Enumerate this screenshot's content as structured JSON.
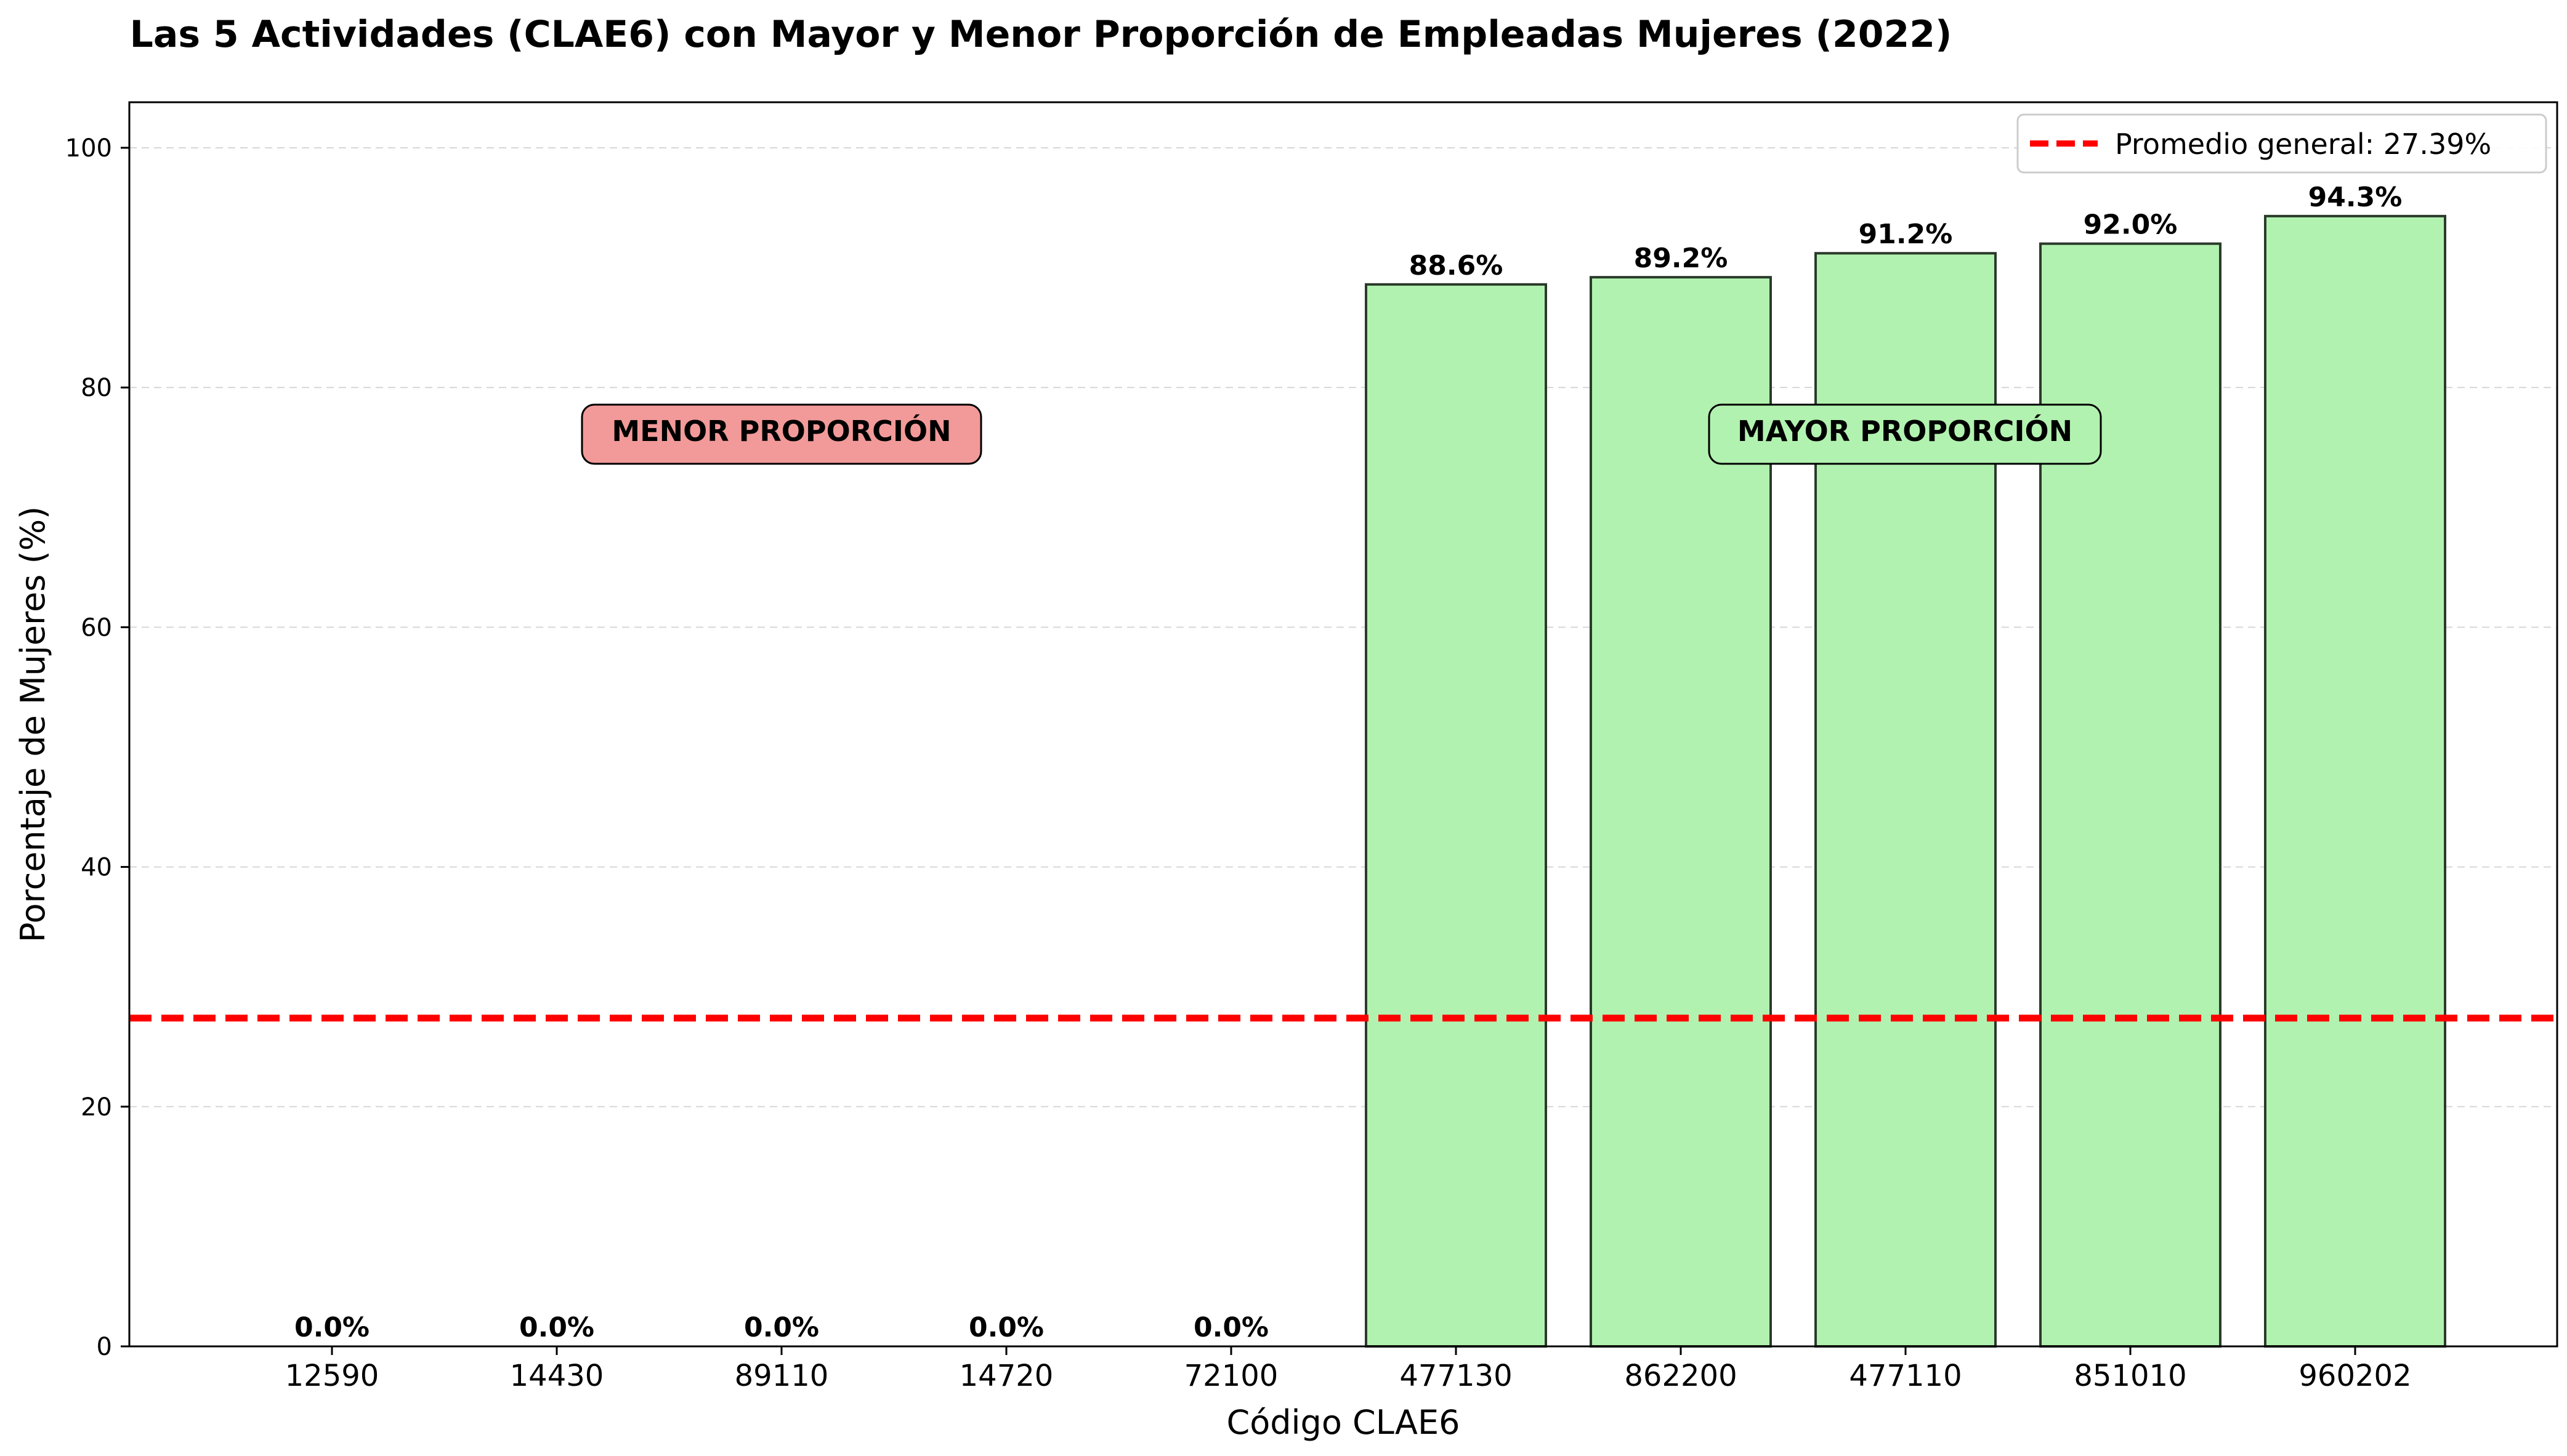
{
  "chart_data": {
    "type": "bar",
    "title": "Las 5 Actividades (CLAE6) con Mayor y Menor Proporción de Empleadas Mujeres (2022)",
    "xlabel": "Código CLAE6",
    "ylabel": "Porcentaje de Mujeres (%)",
    "ylim": [
      0,
      103.8
    ],
    "yticks": [
      0,
      20,
      40,
      60,
      80,
      100
    ],
    "categories": [
      "12590",
      "14430",
      "89110",
      "14720",
      "72100",
      "477130",
      "862200",
      "477110",
      "851010",
      "960202"
    ],
    "values": [
      0.0,
      0.0,
      0.0,
      0.0,
      0.0,
      88.6,
      89.2,
      91.2,
      92.0,
      94.3
    ],
    "value_labels": [
      "0.0%",
      "0.0%",
      "0.0%",
      "0.0%",
      "0.0%",
      "88.6%",
      "89.2%",
      "91.2%",
      "92.0%",
      "94.3%"
    ],
    "bar_colors": [
      "#f29a99",
      "#f29a99",
      "#f29a99",
      "#f29a99",
      "#f29a99",
      "#b2f2b0",
      "#b2f2b0",
      "#b2f2b0",
      "#b2f2b0",
      "#b2f2b0"
    ],
    "reference_line": {
      "value": 27.39,
      "label": "Promedio general: 27.39%",
      "color": "#ff0000"
    },
    "annotations": [
      {
        "text": "MENOR PROPORCIÓN",
        "color": "#f29a99",
        "x": "14430-14720",
        "y": 76
      },
      {
        "text": "MAYOR PROPORCIÓN",
        "color": "#b2f2b0",
        "x": "477110",
        "y": 76
      }
    ],
    "grid": true,
    "legend": "top-right"
  }
}
